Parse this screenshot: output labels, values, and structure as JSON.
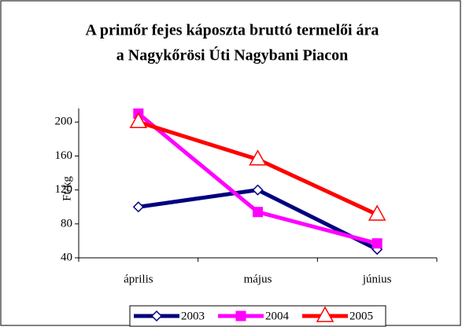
{
  "chart_data": {
    "type": "line",
    "title": [
      "A primőr fejes káposzta bruttó termelői ára",
      "a Nagykőrösi Úti Nagybani Piacon"
    ],
    "y_label": "Ft/kg",
    "categories": [
      "április",
      "május",
      "június"
    ],
    "series": [
      {
        "name": "2003",
        "color": "#000080",
        "marker": "diamond",
        "values": [
          100,
          120,
          50
        ]
      },
      {
        "name": "2004",
        "color": "#ff00ff",
        "marker": "square",
        "values": [
          210,
          94,
          57
        ]
      },
      {
        "name": "2005",
        "color": "#ff0000",
        "marker": "triangle",
        "values": [
          200,
          156,
          91
        ]
      }
    ],
    "ylim": [
      40,
      216
    ],
    "yticks": [
      40,
      80,
      120,
      160,
      200
    ],
    "grid": false,
    "legend": "bottom"
  }
}
